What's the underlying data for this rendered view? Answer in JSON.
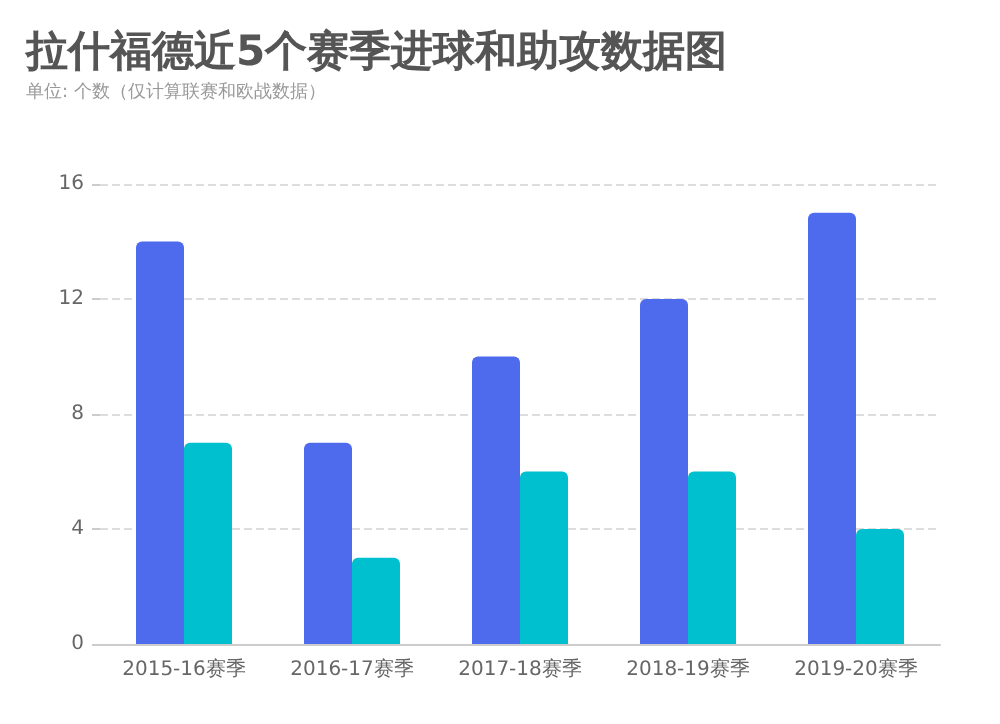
{
  "chart_data": {
    "type": "bar",
    "title": "拉什福德近5个赛季进球和助攻数据图",
    "subtitle": "单位: 个数（仅计算联赛和欧战数据）",
    "categories": [
      "2015-16赛季",
      "2016-17赛季",
      "2017-18赛季",
      "2018-19赛季",
      "2019-20赛季"
    ],
    "series": [
      {
        "color": "#4f6bed",
        "values": [
          14,
          7,
          10,
          12,
          15
        ]
      },
      {
        "color": "#00c0d0",
        "values": [
          7,
          3,
          6,
          6,
          4
        ]
      }
    ],
    "ylim": [
      0,
      16
    ],
    "yticks": [
      0,
      4,
      8,
      12,
      16
    ],
    "grid": "y"
  }
}
